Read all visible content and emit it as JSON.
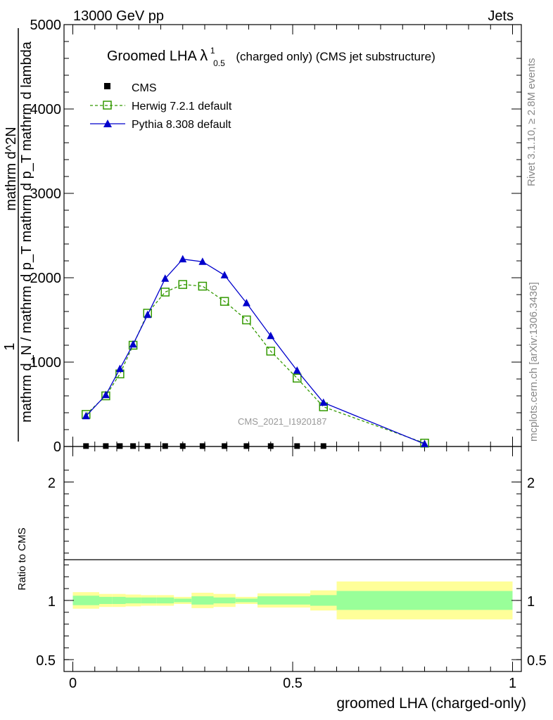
{
  "header": {
    "energy_label": "13000 GeV pp",
    "category_label": "Jets"
  },
  "side_labels": {
    "rivet": "Rivet 3.1.10, ≥ 2.8M events",
    "mcplots": "mcplots.cern.ch [arXiv:1306.3436]"
  },
  "watermark": "CMS_2021_I1920187",
  "title": {
    "main": "Groomed LHA",
    "lambda": "λ",
    "sup": "1",
    "sub": "0.5",
    "rest": "(charged only) (CMS jet substructure)"
  },
  "chart_data": [
    {
      "type": "line",
      "panel": "main",
      "ylabel_numerator": "1",
      "ylabel_denominator": "mathrm d_N / mathrm d p_T mathrm d p_T mathrm d lambda",
      "ylabel_top": "mathrm d^2N",
      "ylim": [
        0,
        5000
      ],
      "xlim": [
        -0.02,
        1.02
      ],
      "y_ticks": [
        0,
        1000,
        2000,
        3000,
        4000,
        5000
      ],
      "y_tick_labels": [
        "0",
        "1000",
        "2000",
        "3000",
        "4000",
        "5000"
      ],
      "legend_position": "top-left",
      "series": [
        {
          "name": "CMS",
          "color": "#000000",
          "marker": "square-filled",
          "x": [
            0.03,
            0.075,
            0.107,
            0.137,
            0.17,
            0.21,
            0.25,
            0.295,
            0.345,
            0.395,
            0.45,
            0.51,
            0.57
          ],
          "y": [
            5,
            5,
            5,
            5,
            5,
            5,
            5,
            5,
            5,
            5,
            5,
            5,
            5
          ]
        },
        {
          "name": "Herwig 7.2.1 default",
          "color": "#339900",
          "marker": "square-open",
          "dashed": true,
          "x": [
            0.03,
            0.075,
            0.107,
            0.137,
            0.17,
            0.21,
            0.25,
            0.295,
            0.345,
            0.395,
            0.45,
            0.51,
            0.57,
            0.8
          ],
          "y": [
            380,
            600,
            860,
            1200,
            1580,
            1830,
            1920,
            1900,
            1720,
            1500,
            1130,
            810,
            470,
            40
          ]
        },
        {
          "name": "Pythia 8.308 default",
          "color": "#0000cc",
          "marker": "triangle-filled",
          "x": [
            0.03,
            0.075,
            0.107,
            0.137,
            0.17,
            0.21,
            0.25,
            0.295,
            0.345,
            0.395,
            0.45,
            0.51,
            0.57,
            0.8
          ],
          "y": [
            360,
            610,
            920,
            1210,
            1560,
            1990,
            2220,
            2190,
            2030,
            1700,
            1310,
            900,
            520,
            30
          ]
        }
      ]
    },
    {
      "type": "area",
      "panel": "ratio",
      "ylabel": "Ratio to CMS",
      "xlabel": "groomed LHA (charged-only)",
      "ylim": [
        0.4,
        2.3
      ],
      "y_ticks": [
        0.5,
        1,
        2
      ],
      "y_tick_labels": [
        "0.5",
        "1",
        "2"
      ],
      "x_ticks": [
        0,
        0.5,
        1
      ],
      "x_tick_labels": [
        "0",
        "0.5",
        "1"
      ],
      "reference_line": 1,
      "bands": {
        "bin_edges": [
          0.0,
          0.06,
          0.09,
          0.12,
          0.155,
          0.19,
          0.23,
          0.27,
          0.32,
          0.37,
          0.42,
          0.48,
          0.54,
          0.6,
          1.0
        ],
        "inner_low": [
          0.96,
          0.97,
          0.97,
          0.975,
          0.975,
          0.975,
          0.985,
          0.965,
          0.975,
          0.985,
          0.965,
          0.965,
          0.955,
          0.92
        ],
        "inner_high": [
          1.04,
          1.03,
          1.03,
          1.025,
          1.025,
          1.025,
          1.015,
          1.035,
          1.025,
          1.015,
          1.035,
          1.035,
          1.045,
          1.08
        ],
        "outer_low": [
          0.93,
          0.945,
          0.945,
          0.95,
          0.955,
          0.955,
          0.97,
          0.935,
          0.945,
          0.97,
          0.94,
          0.94,
          0.915,
          0.84
        ],
        "outer_high": [
          1.07,
          1.055,
          1.055,
          1.05,
          1.045,
          1.045,
          1.03,
          1.065,
          1.055,
          1.03,
          1.06,
          1.06,
          1.085,
          1.16
        ],
        "inner_color": "#99ff99",
        "outer_color": "#ffff99"
      }
    }
  ]
}
